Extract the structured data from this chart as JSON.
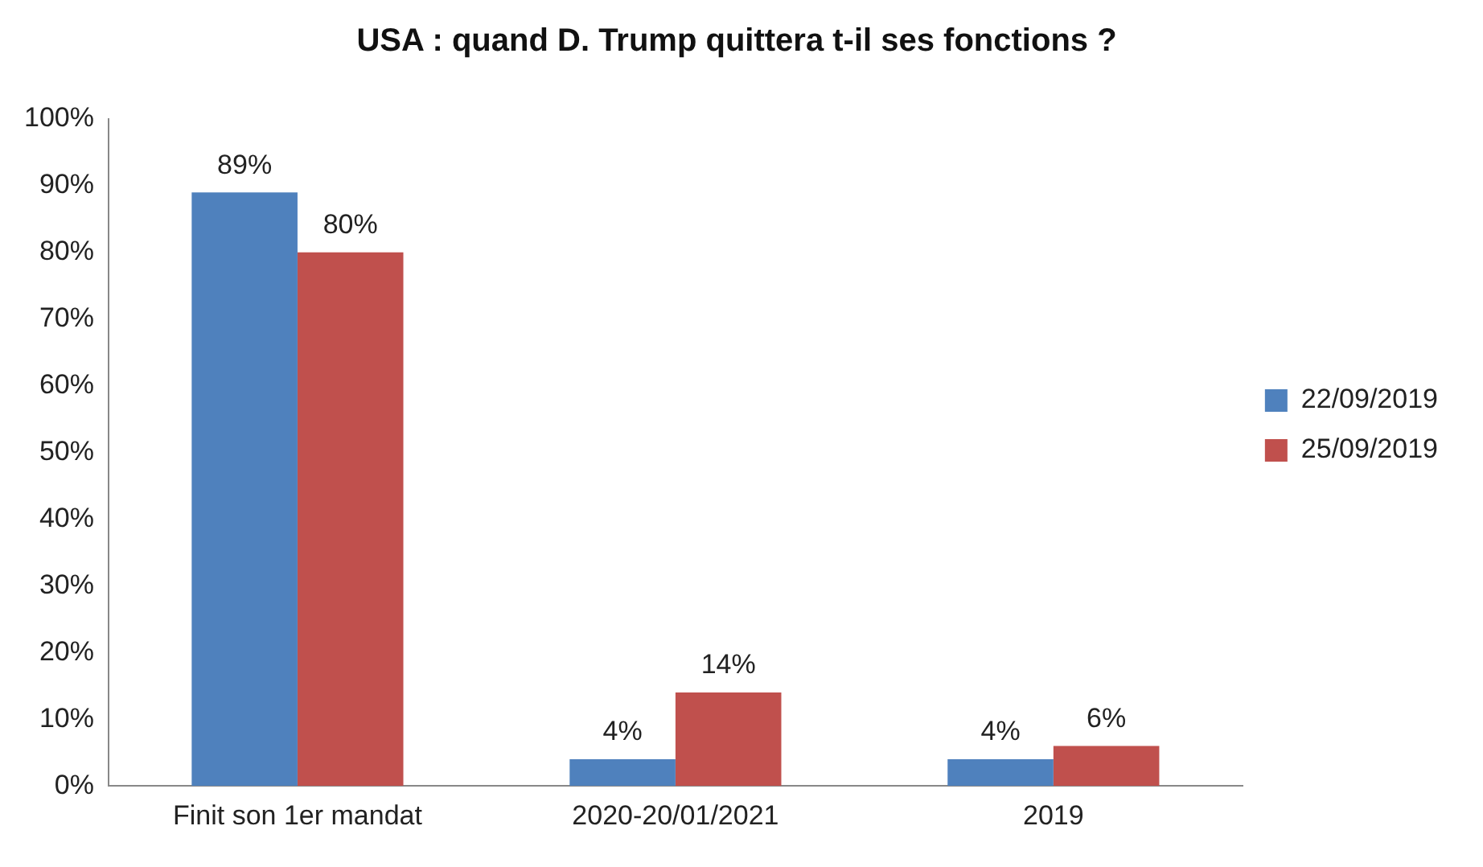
{
  "chart_data": {
    "type": "bar",
    "title": "USA : quand D. Trump quittera t-il ses fonctions ?",
    "categories": [
      "Finit son 1er mandat",
      "2020-20/01/2021",
      "2019"
    ],
    "series": [
      {
        "name": "22/09/2019",
        "color": "#4f81bd",
        "values": [
          89,
          4,
          4
        ],
        "value_labels": [
          "89%",
          "4%",
          "4%"
        ]
      },
      {
        "name": "25/09/2019",
        "color": "#c0504d",
        "values": [
          80,
          14,
          6
        ],
        "value_labels": [
          "80%",
          "14%",
          "6%"
        ]
      }
    ],
    "ylim": [
      0,
      100
    ],
    "yticks": [
      {
        "value": 0,
        "label": "0%"
      },
      {
        "value": 10,
        "label": "10%"
      },
      {
        "value": 20,
        "label": "20%"
      },
      {
        "value": 30,
        "label": "30%"
      },
      {
        "value": 40,
        "label": "40%"
      },
      {
        "value": 50,
        "label": "50%"
      },
      {
        "value": 60,
        "label": "60%"
      },
      {
        "value": 70,
        "label": "70%"
      },
      {
        "value": 80,
        "label": "80%"
      },
      {
        "value": 90,
        "label": "90%"
      },
      {
        "value": 100,
        "label": "100%"
      }
    ],
    "grid": false,
    "legend": "right"
  }
}
